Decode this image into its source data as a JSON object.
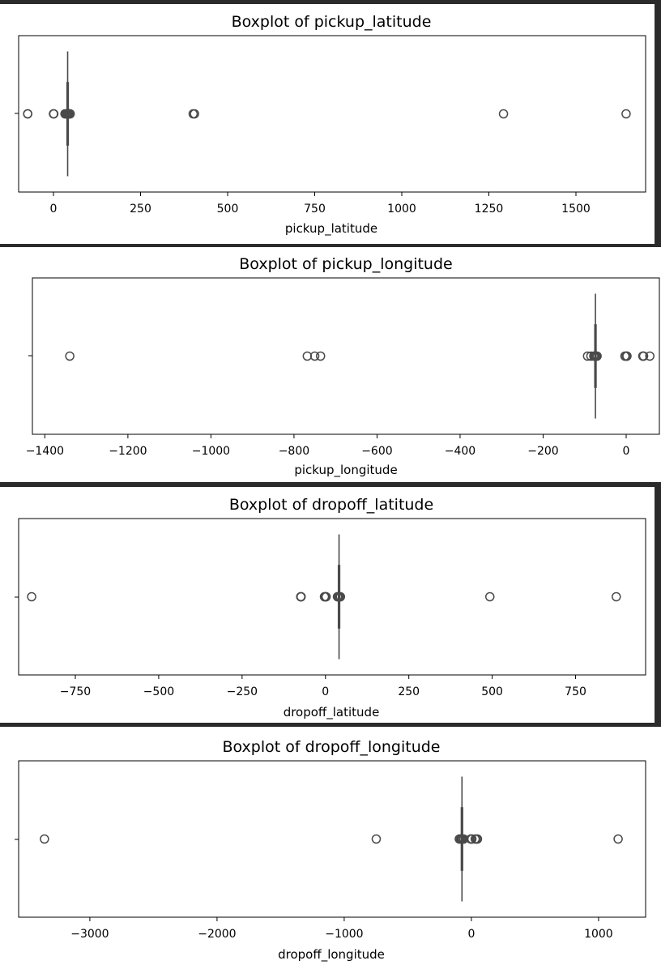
{
  "theme": {
    "page_background": "#2b2b2b",
    "panel_background": "#ffffff",
    "ink": "#000000",
    "box_color": "#4a4a4a"
  },
  "chart_data": [
    {
      "type": "boxplot",
      "title": "Boxplot of pickup_latitude",
      "xlabel": "pickup_latitude",
      "xlim": [
        -100,
        1700
      ],
      "xticks": [
        0,
        250,
        500,
        750,
        1000,
        1250,
        1500
      ],
      "xtick_labels": [
        "0",
        "250",
        "500",
        "750",
        "1000",
        "1250",
        "1500"
      ],
      "box": {
        "whislo": 40.7,
        "q1": 40.73,
        "median": 40.75,
        "q3": 40.77,
        "whishi": 40.8
      },
      "whisker_display": [
        40.4,
        41.0
      ],
      "outliers": [
        -74.0,
        -73.9,
        0,
        1,
        33,
        36,
        38,
        39,
        42,
        43,
        45,
        47,
        48,
        401,
        405,
        1292,
        1644
      ],
      "grid": false,
      "legend": "none"
    },
    {
      "type": "boxplot",
      "title": "Boxplot of pickup_longitude",
      "xlabel": "pickup_longitude",
      "xlim": [
        -1430,
        80
      ],
      "xticks": [
        -1400,
        -1200,
        -1000,
        -800,
        -600,
        -400,
        -200,
        0
      ],
      "xtick_labels": [
        "−1400",
        "−1200",
        "−1000",
        "−800",
        "−600",
        "−400",
        "−200",
        "0"
      ],
      "box": {
        "whislo": -73.99,
        "q1": -73.99,
        "median": -73.98,
        "q3": -73.97,
        "whishi": -73.93
      },
      "whisker_display": [
        -74.6,
        -73.4
      ],
      "outliers": [
        -1340,
        -768,
        -750,
        -736,
        -93,
        -85,
        -78,
        -76,
        -74.2,
        -73.8,
        -72,
        -70,
        -3,
        0,
        1,
        2,
        40,
        41,
        42,
        57
      ],
      "grid": false,
      "legend": "none"
    },
    {
      "type": "boxplot",
      "title": "Boxplot of dropoff_latitude",
      "xlabel": "dropoff_latitude",
      "xlim": [
        -920,
        960
      ],
      "xticks": [
        -750,
        -500,
        -250,
        0,
        250,
        500,
        750
      ],
      "xtick_labels": [
        "−750",
        "−500",
        "−250",
        "0",
        "250",
        "500",
        "750"
      ],
      "box": {
        "whislo": 40.69,
        "q1": 40.73,
        "median": 40.75,
        "q3": 40.77,
        "whishi": 40.81
      },
      "whisker_display": [
        40.2,
        41.3
      ],
      "outliers": [
        -881,
        -74.2,
        -73.6,
        -73.0,
        -3,
        -1,
        0,
        1,
        2,
        36,
        38,
        39,
        42,
        43,
        45,
        493,
        872
      ],
      "grid": false,
      "legend": "none"
    },
    {
      "type": "boxplot",
      "title": "Boxplot of dropoff_longitude",
      "xlabel": "dropoff_longitude",
      "xlim": [
        -3560,
        1370
      ],
      "xticks": [
        -3000,
        -2000,
        -1000,
        0,
        1000
      ],
      "xtick_labels": [
        "−3000",
        "−2000",
        "−1000",
        "0",
        "1000"
      ],
      "box": {
        "whislo": -74.01,
        "q1": -73.99,
        "median": -73.98,
        "q3": -73.96,
        "whishi": -73.92
      },
      "whisker_display": [
        -74.6,
        -73.4
      ],
      "outliers": [
        -3357,
        -748,
        -95,
        -88,
        -80,
        -75,
        -74.2,
        -73.6,
        -70,
        -60,
        -5,
        0,
        4,
        30,
        40,
        48,
        1154
      ],
      "grid": false,
      "legend": "none"
    }
  ]
}
